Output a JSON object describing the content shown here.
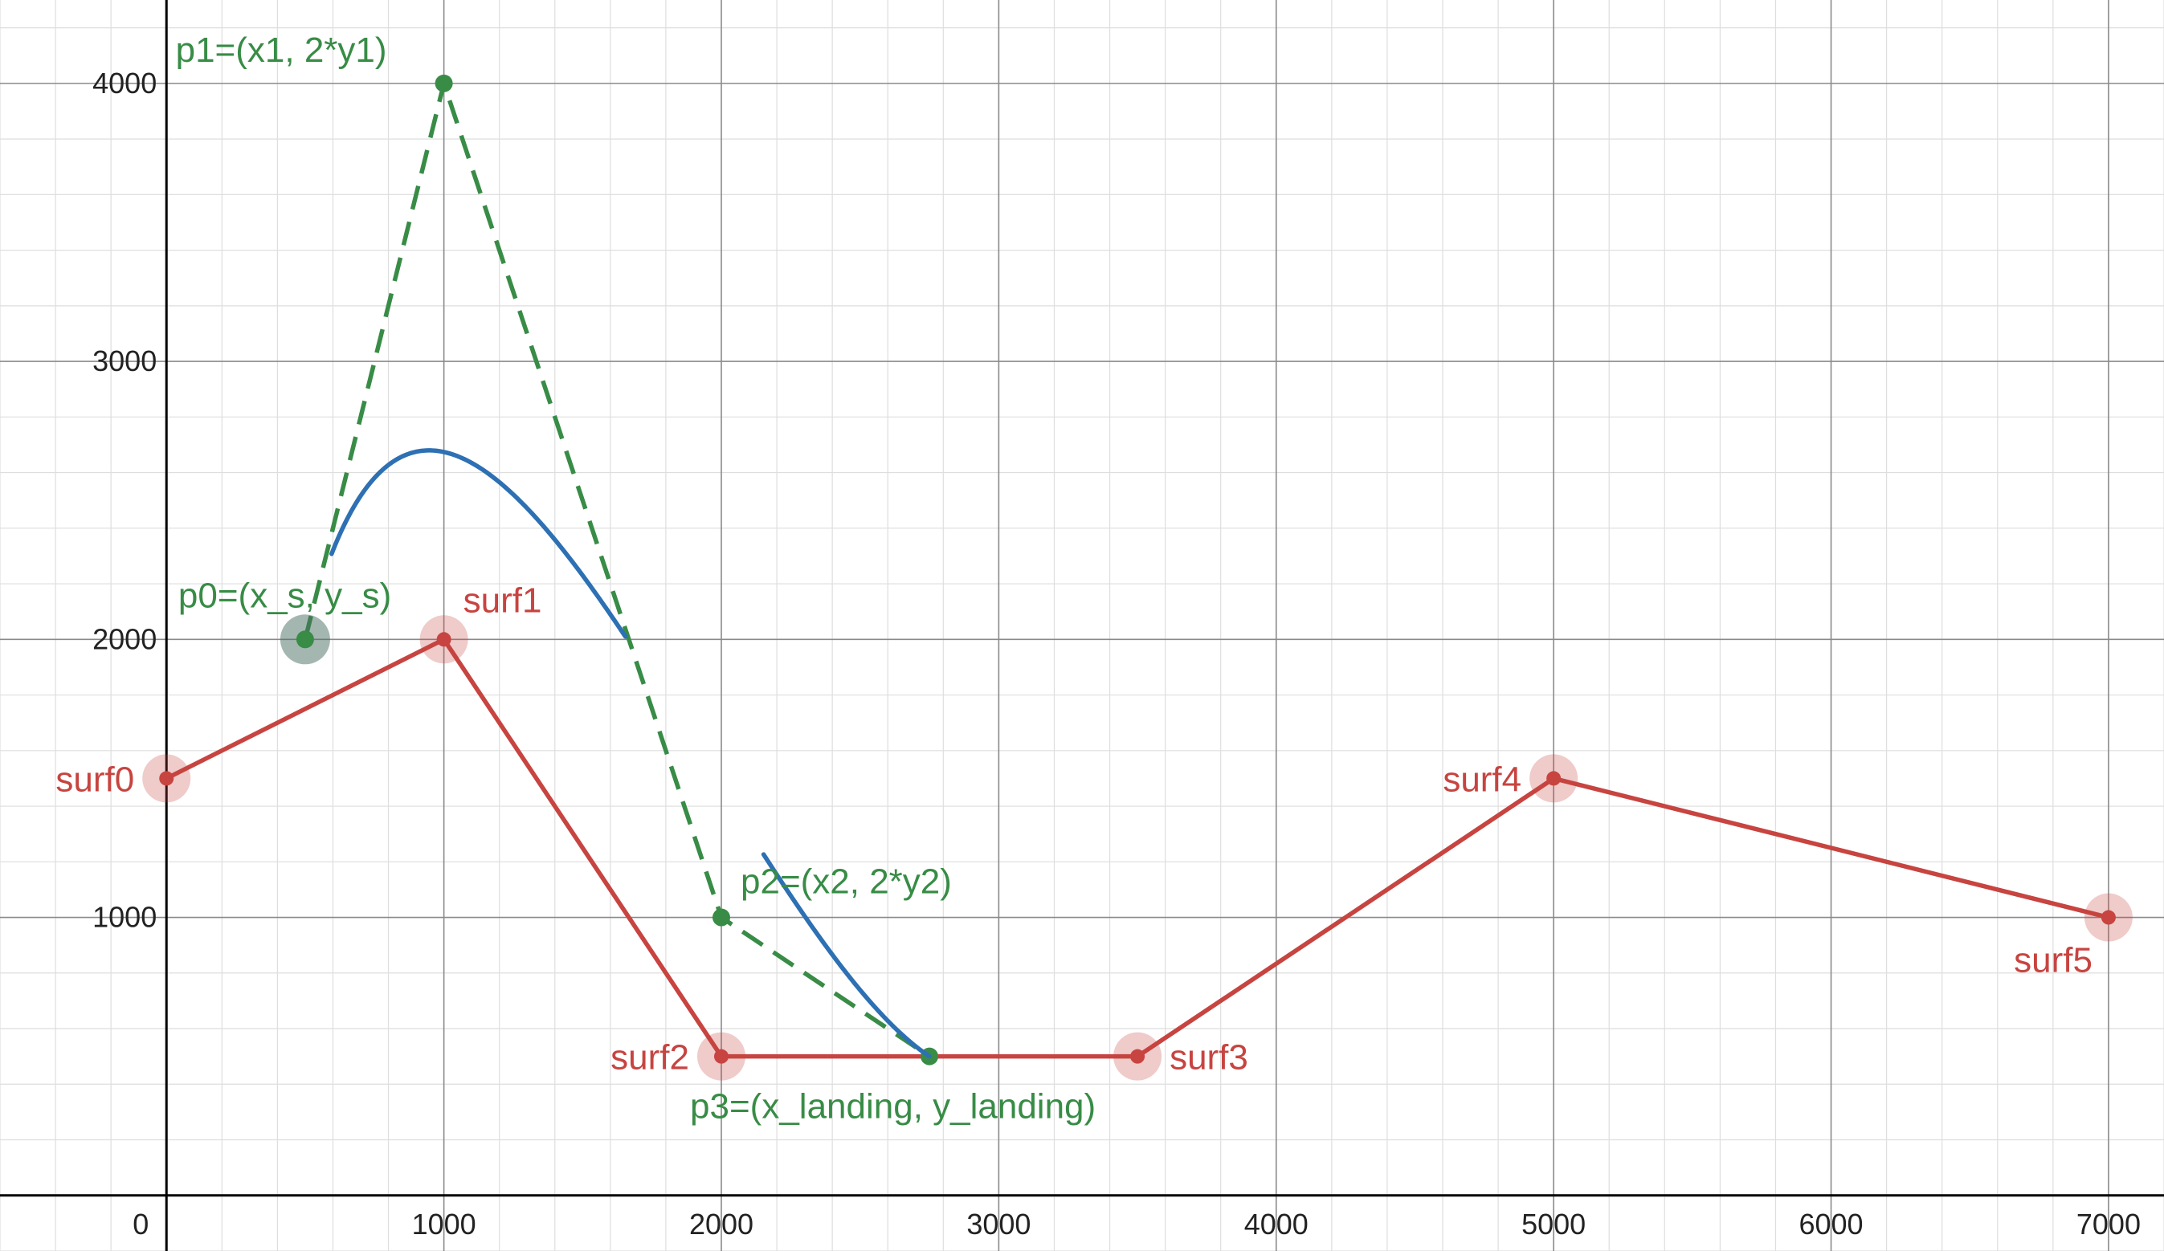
{
  "chart_data": {
    "type": "line",
    "title": "",
    "xlabel": "",
    "ylabel": "",
    "xlim": [
      -600,
      7200
    ],
    "ylim": [
      -200,
      4300
    ],
    "grid": true,
    "x_ticks": [
      0,
      1000,
      2000,
      3000,
      4000,
      5000,
      6000,
      7000
    ],
    "y_ticks": [
      1000,
      2000,
      3000,
      4000
    ],
    "x_tick_labels": [
      "0",
      "1000",
      "2000",
      "3000",
      "4000",
      "5000",
      "6000",
      "7000"
    ],
    "y_tick_labels": [
      "1000",
      "2000",
      "3000",
      "4000"
    ],
    "colors": {
      "surface": "#c74440",
      "control": "#388c46",
      "curve": "#2d70b3",
      "axis": "#000000"
    },
    "surface": {
      "points": [
        {
          "label": "surf0",
          "x": 0,
          "y": 1500
        },
        {
          "label": "surf1",
          "x": 1000,
          "y": 2000
        },
        {
          "label": "surf2",
          "x": 2000,
          "y": 500
        },
        {
          "label": "surf3",
          "x": 3500,
          "y": 500
        },
        {
          "label": "surf4",
          "x": 5000,
          "y": 1500
        },
        {
          "label": "surf5",
          "x": 7000,
          "y": 1000
        }
      ]
    },
    "control_polygon": {
      "points": [
        {
          "label": "p0=(x_s, y_s)",
          "x": 500,
          "y": 2000
        },
        {
          "label": "p1=(x1, 2*y1)",
          "x": 1000,
          "y": 4000
        },
        {
          "label": "p2=(x2, 2*y2)",
          "x": 2000,
          "y": 1000
        },
        {
          "label": "p3=(x_landing, y_landing)",
          "x": 2750,
          "y": 500
        }
      ]
    },
    "curve": {
      "type": "cubic-bezier",
      "visible_t_range": [
        0.06,
        0.55
      ],
      "visible_t_range_2": [
        0.75,
        1.0
      ]
    }
  }
}
